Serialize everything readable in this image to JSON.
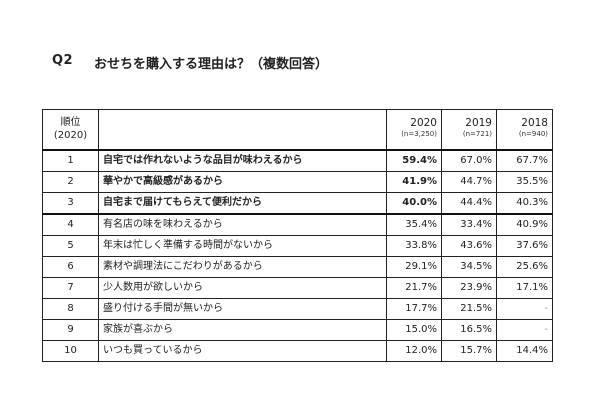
{
  "question": {
    "label": "Q2",
    "title": "おせちを購入する理由は？（複数回答）"
  },
  "table": {
    "rank_header": [
      "順位",
      "(2020)"
    ],
    "years": [
      {
        "year": "2020",
        "n": "(n=3,250)"
      },
      {
        "year": "2019",
        "n": "(n=721)"
      },
      {
        "year": "2018",
        "n": "(n=940)"
      }
    ],
    "rows": [
      {
        "rank": "1",
        "reason": "自宅では作れないような品目が味わえるから",
        "v2020": "59.4%",
        "v2019": "67.0%",
        "v2018": "67.7%"
      },
      {
        "rank": "2",
        "reason": "華やかで高級感があるから",
        "v2020": "41.9%",
        "v2019": "44.7%",
        "v2018": "35.5%"
      },
      {
        "rank": "3",
        "reason": "自宅まで届けてもらえて便利だから",
        "v2020": "40.0%",
        "v2019": "44.4%",
        "v2018": "40.3%"
      },
      {
        "rank": "4",
        "reason": "有名店の味を味わえるから",
        "v2020": "35.4%",
        "v2019": "33.4%",
        "v2018": "40.9%"
      },
      {
        "rank": "5",
        "reason": "年末は忙しく準備する時間がないから",
        "v2020": "33.8%",
        "v2019": "43.6%",
        "v2018": "37.6%"
      },
      {
        "rank": "6",
        "reason": "素材や調理法にこだわりがあるから",
        "v2020": "29.1%",
        "v2019": "34.5%",
        "v2018": "25.6%"
      },
      {
        "rank": "7",
        "reason": "少人数用が欲しいから",
        "v2020": "21.7%",
        "v2019": "23.9%",
        "v2018": "17.1%"
      },
      {
        "rank": "8",
        "reason": "盛り付ける手間が無いから",
        "v2020": "17.7%",
        "v2019": "21.5%",
        "v2018": "-"
      },
      {
        "rank": "9",
        "reason": "家族が喜ぶから",
        "v2020": "15.0%",
        "v2019": "16.5%",
        "v2018": "-"
      },
      {
        "rank": "10",
        "reason": "いつも買っているから",
        "v2020": "12.0%",
        "v2019": "15.7%",
        "v2018": "14.4%"
      }
    ]
  }
}
